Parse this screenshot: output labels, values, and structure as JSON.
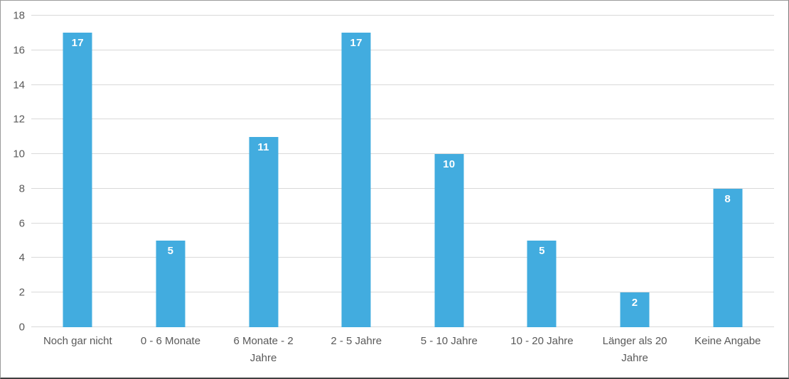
{
  "chart_data": {
    "type": "bar",
    "title": "",
    "xlabel": "",
    "ylabel": "",
    "categories": [
      "Noch gar nicht",
      "0 - 6 Monate",
      "6 Monate - 2 Jahre",
      "2 - 5 Jahre",
      "5 - 10 Jahre",
      "10 - 20 Jahre",
      "Länger als 20 Jahre",
      "Keine Angabe"
    ],
    "values": [
      17,
      5,
      11,
      17,
      10,
      5,
      2,
      8
    ],
    "ylim": [
      0,
      18
    ],
    "ytick_step": 2,
    "yticks": [
      0,
      2,
      4,
      6,
      8,
      10,
      12,
      14,
      16,
      18
    ],
    "grid": true,
    "legend": false,
    "value_labels_inside_bars": true,
    "bar_color": "#42ACDF",
    "value_label_color": "#FFFFFF",
    "axis_text_color": "#595959",
    "gridline_color": "#D9D9D9"
  }
}
